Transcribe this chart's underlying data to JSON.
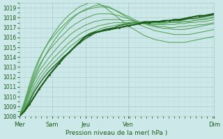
{
  "title": "",
  "xlabel": "Pression niveau de la mer( hPa )",
  "ylabel": "",
  "bg_color": "#cce8e8",
  "grid_color_major": "#aacccc",
  "grid_color_minor": "#bbdddd",
  "line_color_dark": "#1a5c1a",
  "line_color_light": "#4a9a4a",
  "ylim": [
    1008,
    1019.5
  ],
  "yticks": [
    1008,
    1009,
    1010,
    1011,
    1012,
    1013,
    1014,
    1015,
    1016,
    1017,
    1018,
    1019
  ],
  "xtick_labels": [
    "Mer",
    "Sam",
    "Jeu",
    "Ven",
    "Dim"
  ],
  "xtick_positions": [
    0,
    0.17,
    0.34,
    0.56,
    1.0
  ],
  "figsize": [
    3.2,
    2.0
  ],
  "dpi": 100,
  "series": [
    [
      1008.0,
      1008.5,
      1009.2,
      1010.0,
      1010.8,
      1011.5,
      1012.2,
      1012.8,
      1013.4,
      1014.0,
      1014.5,
      1015.0,
      1015.5,
      1016.0,
      1016.3,
      1016.5,
      1016.6,
      1016.7,
      1016.8,
      1016.9,
      1017.0,
      1017.1,
      1017.2,
      1017.3,
      1017.4,
      1017.5,
      1017.5,
      1017.6,
      1017.6,
      1017.7,
      1017.7,
      1017.8,
      1017.8,
      1017.9,
      1018.0,
      1018.1,
      1018.2,
      1018.2,
      1018.3,
      1018.4
    ],
    [
      1008.0,
      1008.6,
      1009.5,
      1010.5,
      1011.3,
      1012.0,
      1012.6,
      1013.1,
      1013.6,
      1014.1,
      1014.5,
      1015.0,
      1015.4,
      1015.8,
      1016.1,
      1016.4,
      1016.6,
      1016.8,
      1016.9,
      1017.0,
      1017.2,
      1017.3,
      1017.4,
      1017.5,
      1017.5,
      1017.6,
      1017.6,
      1017.6,
      1017.6,
      1017.6,
      1017.7,
      1017.7,
      1017.7,
      1017.8,
      1017.9,
      1017.9,
      1018.0,
      1018.1,
      1018.2,
      1018.3
    ],
    [
      1008.0,
      1008.7,
      1009.7,
      1010.8,
      1011.7,
      1012.4,
      1013.0,
      1013.5,
      1014.0,
      1014.5,
      1015.0,
      1015.4,
      1015.8,
      1016.1,
      1016.4,
      1016.6,
      1016.8,
      1017.0,
      1017.1,
      1017.2,
      1017.3,
      1017.4,
      1017.5,
      1017.5,
      1017.5,
      1017.5,
      1017.5,
      1017.5,
      1017.5,
      1017.5,
      1017.5,
      1017.6,
      1017.6,
      1017.6,
      1017.6,
      1017.7,
      1017.8,
      1017.9,
      1018.0,
      1018.1
    ],
    [
      1008.0,
      1008.8,
      1010.0,
      1011.2,
      1012.1,
      1012.8,
      1013.4,
      1014.0,
      1014.5,
      1015.0,
      1015.5,
      1015.9,
      1016.3,
      1016.6,
      1016.8,
      1017.0,
      1017.2,
      1017.3,
      1017.4,
      1017.5,
      1017.5,
      1017.5,
      1017.5,
      1017.5,
      1017.4,
      1017.4,
      1017.4,
      1017.4,
      1017.4,
      1017.4,
      1017.5,
      1017.5,
      1017.5,
      1017.6,
      1017.6,
      1017.7,
      1017.8,
      1017.8,
      1017.9,
      1018.0
    ],
    [
      1008.0,
      1009.0,
      1010.3,
      1011.6,
      1012.6,
      1013.3,
      1014.0,
      1014.6,
      1015.2,
      1015.7,
      1016.2,
      1016.6,
      1016.9,
      1017.2,
      1017.4,
      1017.6,
      1017.7,
      1017.8,
      1017.8,
      1017.8,
      1017.8,
      1017.7,
      1017.7,
      1017.6,
      1017.5,
      1017.4,
      1017.4,
      1017.3,
      1017.3,
      1017.3,
      1017.3,
      1017.3,
      1017.4,
      1017.4,
      1017.5,
      1017.5,
      1017.6,
      1017.6,
      1017.7,
      1017.8
    ],
    [
      1008.0,
      1009.2,
      1010.7,
      1012.1,
      1013.2,
      1014.0,
      1014.7,
      1015.3,
      1015.9,
      1016.4,
      1016.9,
      1017.3,
      1017.6,
      1017.9,
      1018.1,
      1018.3,
      1018.4,
      1018.4,
      1018.4,
      1018.3,
      1018.2,
      1018.0,
      1017.9,
      1017.7,
      1017.5,
      1017.4,
      1017.3,
      1017.2,
      1017.1,
      1017.1,
      1017.0,
      1017.0,
      1017.1,
      1017.1,
      1017.2,
      1017.2,
      1017.3,
      1017.3,
      1017.4,
      1017.5
    ],
    [
      1008.0,
      1009.5,
      1011.2,
      1012.7,
      1013.9,
      1014.8,
      1015.6,
      1016.2,
      1016.8,
      1017.3,
      1017.8,
      1018.2,
      1018.5,
      1018.7,
      1018.9,
      1019.0,
      1019.1,
      1019.1,
      1019.0,
      1018.8,
      1018.6,
      1018.3,
      1018.1,
      1017.8,
      1017.6,
      1017.4,
      1017.2,
      1017.1,
      1017.0,
      1016.9,
      1016.9,
      1016.8,
      1016.8,
      1016.8,
      1016.9,
      1017.0,
      1017.1,
      1017.2,
      1017.3,
      1017.4
    ],
    [
      1008.0,
      1009.0,
      1010.5,
      1011.8,
      1013.0,
      1014.0,
      1014.9,
      1015.7,
      1016.4,
      1017.0,
      1017.6,
      1018.1,
      1018.5,
      1018.8,
      1019.0,
      1019.2,
      1019.3,
      1019.2,
      1019.1,
      1018.8,
      1018.5,
      1018.2,
      1017.9,
      1017.6,
      1017.3,
      1017.1,
      1016.9,
      1016.7,
      1016.6,
      1016.5,
      1016.4,
      1016.3,
      1016.3,
      1016.3,
      1016.3,
      1016.4,
      1016.5,
      1016.6,
      1016.7,
      1016.8
    ],
    [
      1008.0,
      1009.3,
      1010.9,
      1012.4,
      1013.7,
      1014.8,
      1015.7,
      1016.5,
      1017.2,
      1017.8,
      1018.3,
      1018.7,
      1019.1,
      1019.3,
      1019.5,
      1019.5,
      1019.4,
      1019.1,
      1018.7,
      1018.3,
      1017.9,
      1017.5,
      1017.1,
      1016.8,
      1016.5,
      1016.2,
      1016.0,
      1015.8,
      1015.7,
      1015.6,
      1015.5,
      1015.5,
      1015.5,
      1015.5,
      1015.6,
      1015.7,
      1015.8,
      1015.9,
      1016.0,
      1016.1
    ]
  ],
  "n_points": 40
}
